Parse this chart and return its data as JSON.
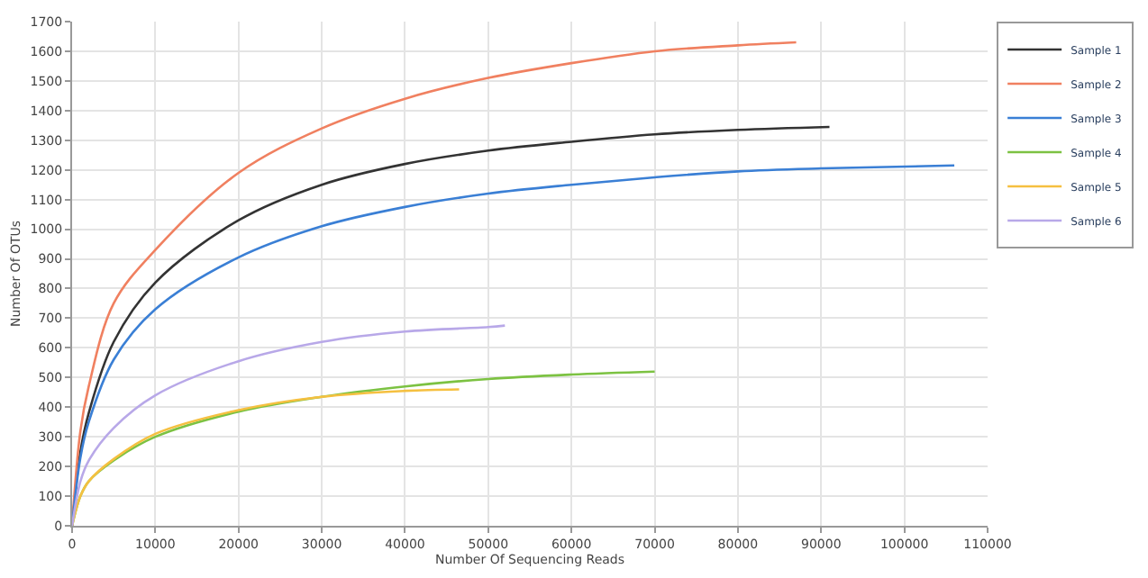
{
  "chart_data": {
    "type": "line",
    "xlabel": "Number Of Sequencing Reads",
    "ylabel": "Number Of OTUs",
    "xlim": [
      0,
      110000
    ],
    "xticks": [
      0,
      10000,
      20000,
      30000,
      40000,
      50000,
      60000,
      70000,
      80000,
      90000,
      100000,
      110000
    ],
    "ylim": [
      0,
      1700
    ],
    "yticks": [
      0,
      100,
      200,
      300,
      400,
      500,
      600,
      700,
      800,
      900,
      1000,
      1100,
      1200,
      1300,
      1400,
      1500,
      1600,
      1700
    ],
    "grid": true,
    "legend": "top right",
    "marker": "none",
    "line_style": "solid",
    "series": [
      {
        "name": "Sample 1",
        "color": "#333333",
        "x": [
          0,
          1000,
          2000,
          5000,
          10000,
          20000,
          30000,
          40000,
          50000,
          60000,
          70000,
          80000,
          91000
        ],
        "values": [
          0,
          250,
          380,
          620,
          820,
          1030,
          1150,
          1220,
          1265,
          1295,
          1320,
          1335,
          1345
        ]
      },
      {
        "name": "Sample 2",
        "color": "#f08060",
        "x": [
          0,
          1000,
          2000,
          5000,
          10000,
          20000,
          30000,
          40000,
          50000,
          60000,
          70000,
          80000,
          87000
        ],
        "values": [
          0,
          320,
          470,
          750,
          930,
          1190,
          1340,
          1440,
          1510,
          1560,
          1600,
          1620,
          1630
        ]
      },
      {
        "name": "Sample 3",
        "color": "#3a7fd5",
        "x": [
          0,
          1000,
          2000,
          5000,
          10000,
          20000,
          30000,
          40000,
          50000,
          60000,
          70000,
          80000,
          90000,
          106000
        ],
        "values": [
          0,
          230,
          350,
          560,
          730,
          905,
          1010,
          1075,
          1120,
          1150,
          1175,
          1195,
          1205,
          1215
        ]
      },
      {
        "name": "Sample 4",
        "color": "#7cc242",
        "x": [
          0,
          1000,
          2000,
          5000,
          10000,
          20000,
          30000,
          40000,
          50000,
          60000,
          70000
        ],
        "values": [
          0,
          100,
          150,
          220,
          300,
          385,
          435,
          470,
          495,
          510,
          520
        ]
      },
      {
        "name": "Sample 5",
        "color": "#f5c040",
        "x": [
          0,
          1000,
          2000,
          5000,
          10000,
          20000,
          30000,
          40000,
          46500
        ],
        "values": [
          0,
          100,
          150,
          225,
          310,
          390,
          435,
          455,
          460
        ]
      },
      {
        "name": "Sample 6",
        "color": "#b8a8e8",
        "x": [
          0,
          1000,
          2000,
          5000,
          10000,
          20000,
          30000,
          40000,
          50000,
          52000
        ],
        "values": [
          0,
          150,
          220,
          330,
          440,
          555,
          620,
          655,
          670,
          675
        ]
      }
    ]
  }
}
